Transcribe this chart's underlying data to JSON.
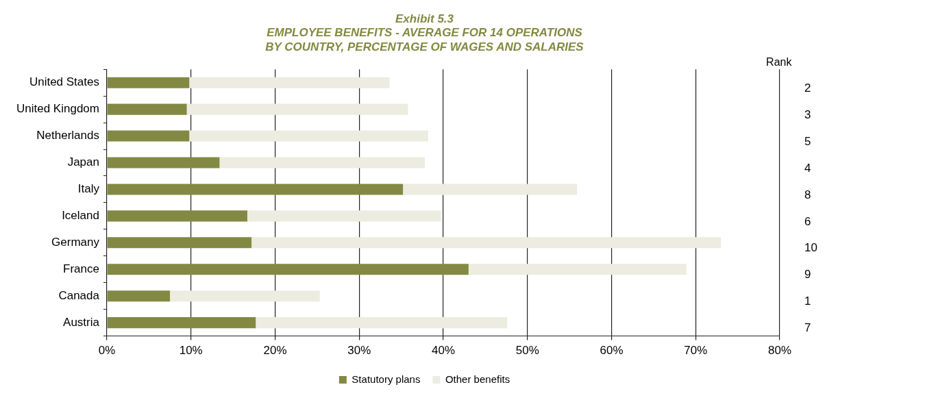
{
  "chart_data": {
    "type": "bar",
    "orientation": "horizontal",
    "stacked": true,
    "title": "Exhibit 5.3",
    "subtitle": "EMPLOYEE BENEFITS - AVERAGE FOR 14 OPERATIONS\nBY COUNTRY, PERCENTAGE OF WAGES AND SALARIES",
    "categories": [
      "United States",
      "United Kingdom",
      "Netherlands",
      "Japan",
      "Italy",
      "Iceland",
      "Germany",
      "France",
      "Canada",
      "Austria"
    ],
    "y2_categories": [
      "2",
      "3",
      "5",
      "4",
      "8",
      "6",
      "10",
      "9",
      "1",
      "7"
    ],
    "y2label": "Rank",
    "series": [
      {
        "name": "Statutory plans",
        "color": "#838942",
        "values": [
          9.8,
          9.5,
          9.8,
          13.4,
          35.2,
          16.7,
          17.2,
          43.0,
          7.5,
          17.7
        ]
      },
      {
        "name": "Other benefits",
        "color": "#ecece0",
        "values": [
          23.8,
          26.3,
          28.4,
          24.4,
          20.7,
          23.0,
          55.8,
          25.9,
          17.8,
          29.9
        ]
      }
    ],
    "xlim": [
      0,
      80
    ],
    "xticks": [
      {
        "value": 0,
        "label": "0%"
      },
      {
        "value": 10,
        "label": "10%"
      },
      {
        "value": 20,
        "label": "20%"
      },
      {
        "value": 30,
        "label": "30%"
      },
      {
        "value": 40,
        "label": "40%"
      },
      {
        "value": 50,
        "label": "50%"
      },
      {
        "value": 60,
        "label": "60%"
      },
      {
        "value": 70,
        "label": "70%"
      },
      {
        "value": 80,
        "label": "80%"
      }
    ],
    "grid": "x",
    "legend": "bottom"
  }
}
